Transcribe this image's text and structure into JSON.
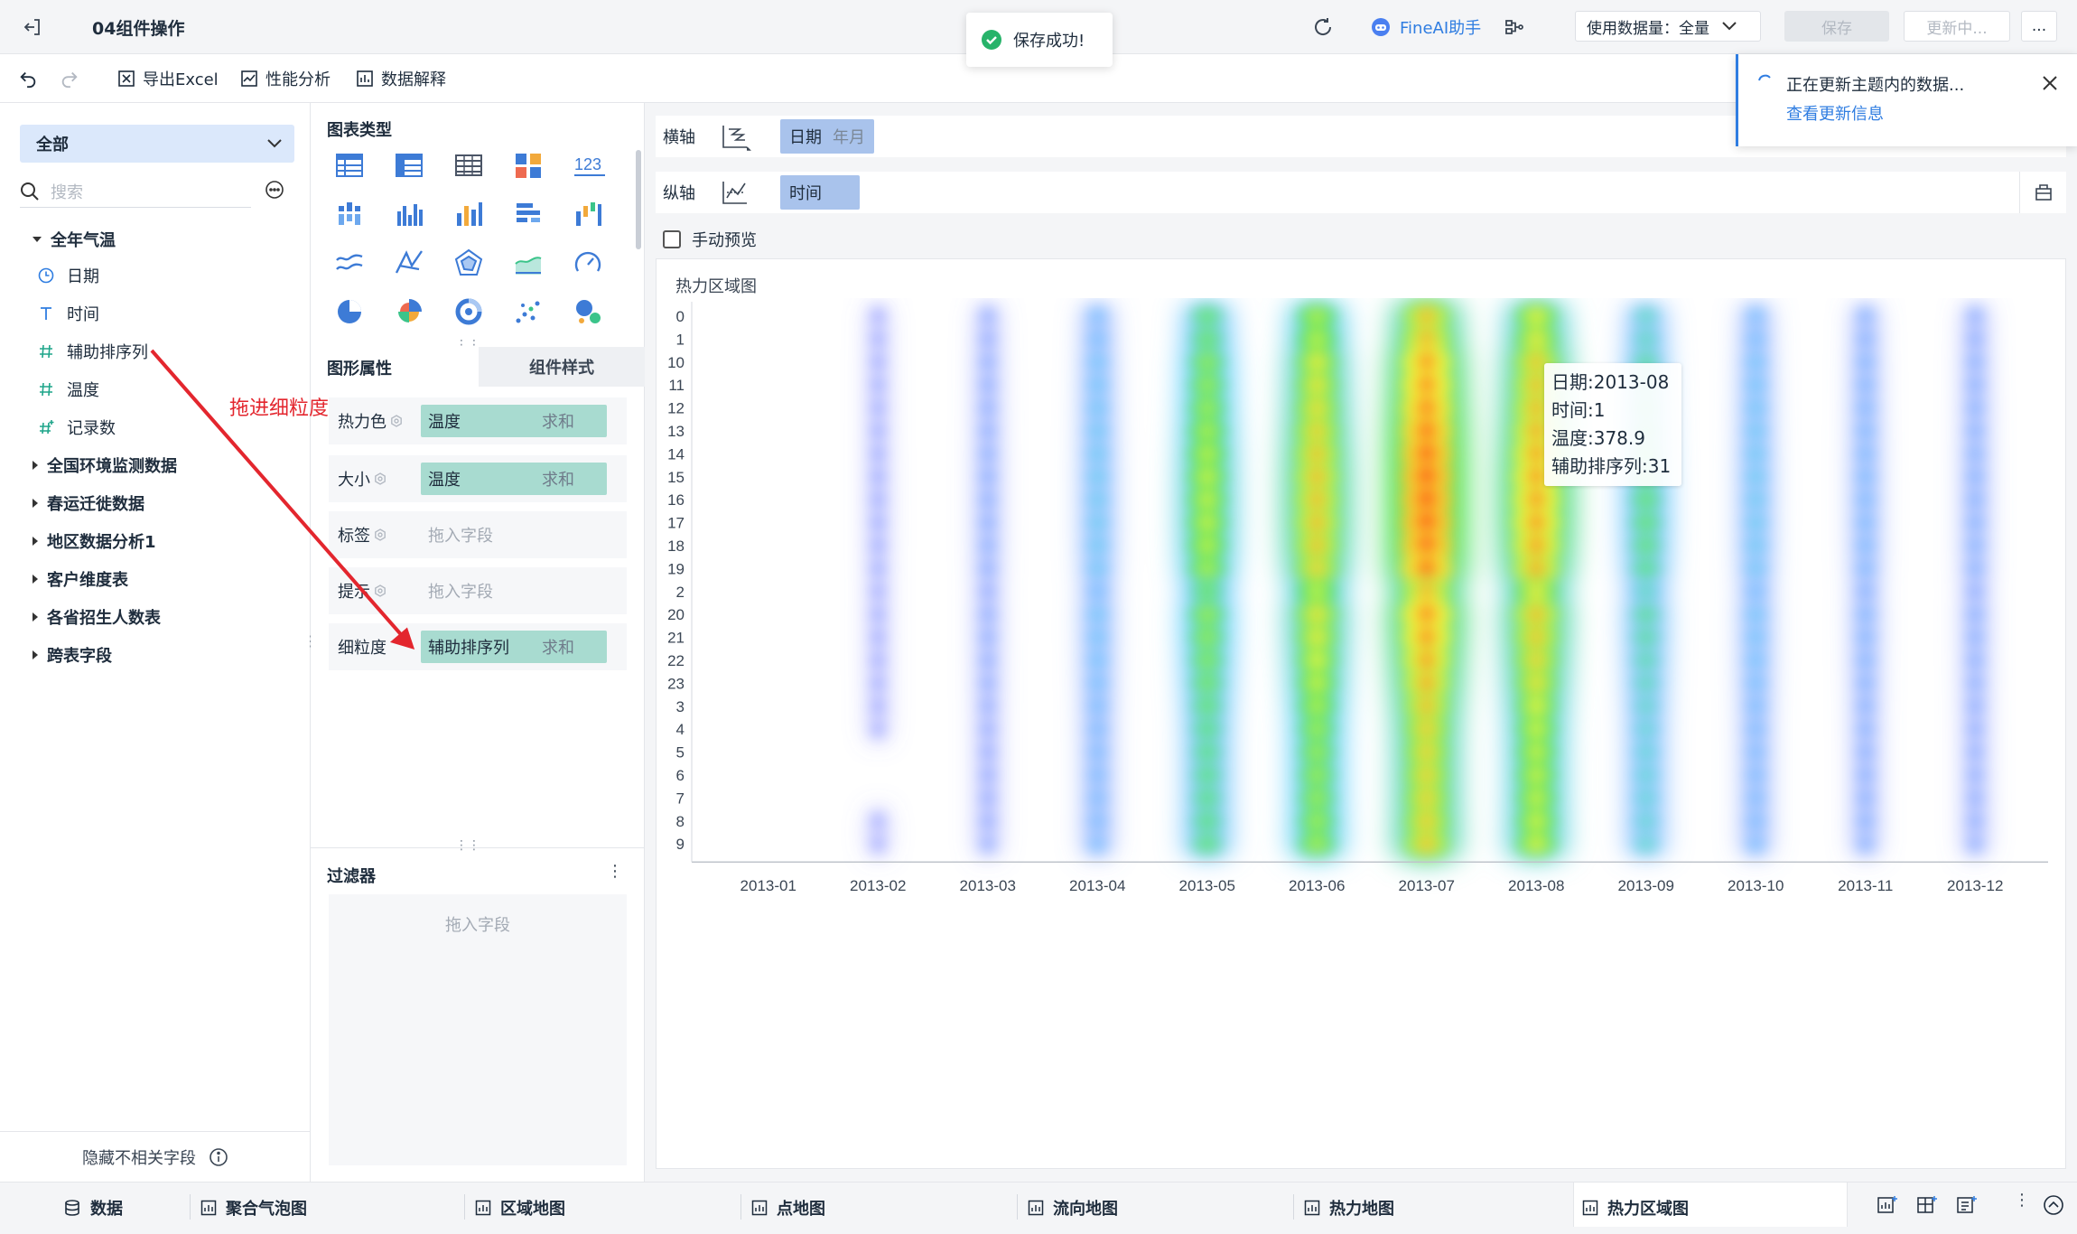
{
  "topbar": {
    "title": "04组件操作",
    "ai_label": "FineAI助手",
    "data_volume": "使用数据量：全量",
    "save": "保存",
    "update": "更新中...",
    "more": "..."
  },
  "toast": {
    "message": "保存成功!"
  },
  "notification": {
    "message": "正在更新主题内的数据...",
    "link": "查看更新信息"
  },
  "toolbar": {
    "export": "导出Excel",
    "perf": "性能分析",
    "explain": "数据解释"
  },
  "left": {
    "scope": "全部",
    "search_placeholder": "搜索",
    "group_open": "全年气温",
    "fields": [
      {
        "icon": "clock-icon",
        "label": "日期"
      },
      {
        "icon": "text-type-icon",
        "label": "时间"
      },
      {
        "icon": "hash-icon",
        "label": "辅助排序列"
      },
      {
        "icon": "hash-icon",
        "label": "温度"
      },
      {
        "icon": "hash-plus-icon",
        "label": "记录数"
      }
    ],
    "groups": [
      "全国环境监测数据",
      "春运迁徙数据",
      "地区数据分析1",
      "客户维度表",
      "各省招生人数表",
      "跨表字段"
    ],
    "hide_fields": "隐藏不相关字段"
  },
  "middle": {
    "chart_types_title": "图表类型",
    "tab_props": "图形属性",
    "tab_style": "组件样式",
    "props": [
      {
        "label": "热力色",
        "field": "温度",
        "agg": "求和"
      },
      {
        "label": "大小",
        "field": "温度",
        "agg": "求和"
      },
      {
        "label": "标签",
        "placeholder": "拖入字段"
      },
      {
        "label": "提示",
        "placeholder": "拖入字段"
      },
      {
        "label": "细粒度",
        "field": "辅助排序列",
        "agg": "求和"
      }
    ],
    "filter_title": "过滤器",
    "filter_placeholder": "拖入字段"
  },
  "axes": {
    "x_label": "横轴",
    "x_field": "日期",
    "x_sub": "年月",
    "y_label": "纵轴",
    "y_field": "时间"
  },
  "preview_label": "手动预览",
  "annotation": "拖进细粒度",
  "chart_data": {
    "type": "heatmap",
    "title": "热力区域图",
    "x_categories": [
      "2013-01",
      "2013-02",
      "2013-03",
      "2013-04",
      "2013-05",
      "2013-06",
      "2013-07",
      "2013-08",
      "2013-09",
      "2013-10",
      "2013-11",
      "2013-12"
    ],
    "y_categories": [
      "0",
      "1",
      "10",
      "11",
      "12",
      "13",
      "14",
      "15",
      "16",
      "17",
      "18",
      "19",
      "2",
      "20",
      "21",
      "22",
      "23",
      "3",
      "4",
      "5",
      "6",
      "7",
      "8",
      "9"
    ],
    "column_intensity": [
      0.05,
      0.08,
      0.15,
      0.3,
      0.62,
      0.76,
      0.97,
      0.84,
      0.48,
      0.3,
      0.22,
      0.18
    ],
    "row_weight": [
      0.78,
      0.8,
      0.88,
      0.9,
      0.92,
      0.95,
      0.98,
      1.0,
      1.0,
      1.0,
      0.98,
      0.94,
      0.8,
      0.9,
      0.88,
      0.85,
      0.82,
      0.78,
      0.75,
      0.74,
      0.74,
      0.74,
      0.75,
      0.76
    ],
    "tooltip": {
      "date": "日期:2013-08",
      "time": "时间:1",
      "temp": "温度:378.9",
      "sort": "辅助排序列:31"
    }
  },
  "bottom_tabs": [
    {
      "label": "数据",
      "icon": "database-icon"
    },
    {
      "label": "聚合气泡图",
      "icon": "chart-tab-icon"
    },
    {
      "label": "区域地图",
      "icon": "chart-tab-icon"
    },
    {
      "label": "点地图",
      "icon": "chart-tab-icon"
    },
    {
      "label": "流向地图",
      "icon": "chart-tab-icon"
    },
    {
      "label": "热力地图",
      "icon": "chart-tab-icon"
    },
    {
      "label": "热力区域图",
      "icon": "chart-tab-icon"
    }
  ]
}
